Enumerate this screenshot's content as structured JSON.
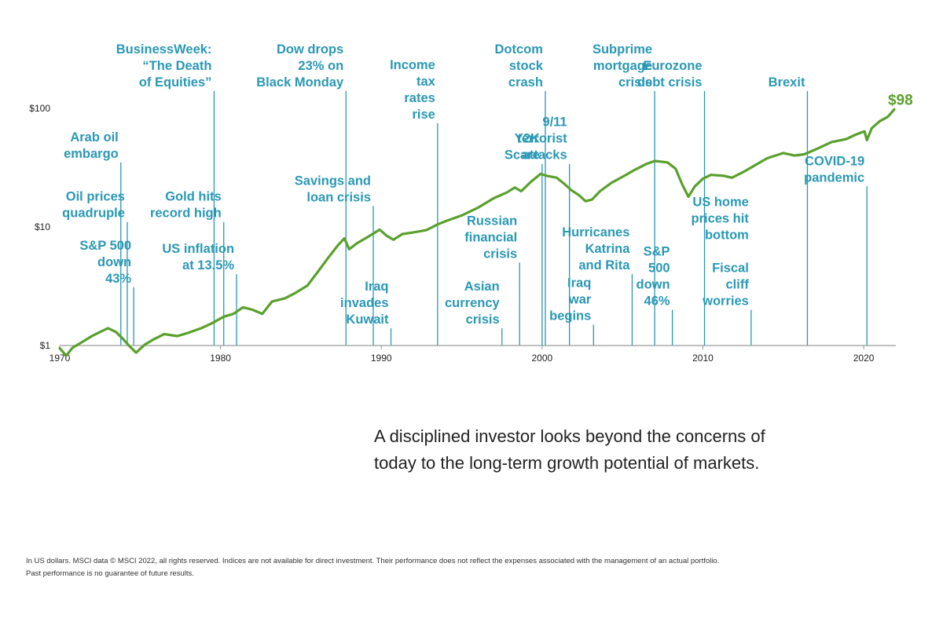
{
  "chart_data": {
    "type": "line",
    "title": "",
    "xlabel": "",
    "ylabel": "",
    "y_scale": "log",
    "xlim": [
      1970,
      2022
    ],
    "ylim": [
      1,
      100
    ],
    "x_ticks": [
      1970,
      1980,
      1990,
      2000,
      2010,
      2020
    ],
    "x_tick_labels": [
      "1970",
      "1980",
      "1990",
      "2000",
      "2010",
      "2020"
    ],
    "y_ticks": [
      1,
      10,
      100
    ],
    "y_tick_labels": [
      "$1",
      "$10",
      "$100"
    ],
    "grid": false,
    "line_color": "#5aa02c",
    "annotation_color": "#2a98b5",
    "series": [
      {
        "x": [
          1970,
          1970.4,
          1970.8,
          1971.3,
          1972,
          1972.5,
          1973,
          1973.5,
          1973.9,
          1974.3,
          1974.75,
          1975.3,
          1975.8,
          1976.5,
          1977.3,
          1978,
          1978.8,
          1979.5,
          1980.2,
          1980.8,
          1981.4,
          1982,
          1982.6,
          1983.2,
          1984,
          1984.6,
          1985.4,
          1986,
          1986.7,
          1987.3,
          1987.7,
          1988,
          1988.5,
          1989.2,
          1989.9,
          1990.3,
          1990.75,
          1991.3,
          1992,
          1992.8,
          1993.5,
          1994,
          1995,
          1996,
          1997,
          1997.8,
          1998.3,
          1998.7,
          1999.3,
          1999.9,
          2000.3,
          2000.9,
          2001.4,
          2001.8,
          2002.3,
          2002.7,
          2003.1,
          2003.6,
          2004.3,
          2005,
          2005.8,
          2006.5,
          2007,
          2007.8,
          2008.3,
          2008.7,
          2009.1,
          2009.5,
          2010,
          2010.5,
          2011.3,
          2011.8,
          2012.5,
          2013.3,
          2014,
          2015,
          2015.7,
          2016.3,
          2017,
          2018,
          2018.9,
          2019.5,
          2020.05,
          2020.2,
          2020.5,
          2021,
          2021.5,
          2021.9
        ],
        "values": [
          0.95,
          0.82,
          0.96,
          1.05,
          1.2,
          1.3,
          1.4,
          1.3,
          1.15,
          1.0,
          0.87,
          1.02,
          1.12,
          1.25,
          1.2,
          1.28,
          1.4,
          1.55,
          1.75,
          1.85,
          2.1,
          2.0,
          1.85,
          2.35,
          2.5,
          2.75,
          3.2,
          4.1,
          5.5,
          7.0,
          8.0,
          6.5,
          7.3,
          8.3,
          9.5,
          8.5,
          7.8,
          8.7,
          9.0,
          9.4,
          10.5,
          11.2,
          12.5,
          14.5,
          17.5,
          19.5,
          21.5,
          20.0,
          24.0,
          28.0,
          27.0,
          26.0,
          23.0,
          20.5,
          18.5,
          16.5,
          17.0,
          20.0,
          23.5,
          26.5,
          30.5,
          34.0,
          36.0,
          35.0,
          31.0,
          23.0,
          18.0,
          22.0,
          25.5,
          27.5,
          27.0,
          26.0,
          29.0,
          33.5,
          38.0,
          42.0,
          40.0,
          41.0,
          45.0,
          52.0,
          55.0,
          60.0,
          64.0,
          54.0,
          68.0,
          78.0,
          85.0,
          98.0
        ]
      }
    ],
    "end_label": "$98",
    "annotations": [
      {
        "year": 1973.8,
        "top_value": 35,
        "lines": [
          "Arab oil",
          "embargo"
        ]
      },
      {
        "year": 1974.2,
        "top_value": 11,
        "lines": [
          "Oil prices",
          "quadruple"
        ]
      },
      {
        "year": 1974.6,
        "top_value": 3.1,
        "lines": [
          "S&P 500",
          "down",
          "43%"
        ]
      },
      {
        "year": 1979.6,
        "top_value": 140,
        "lines": [
          "BusinessWeek:",
          "“The Death",
          "of Equities”"
        ]
      },
      {
        "year": 1980.2,
        "top_value": 11,
        "lines": [
          "Gold hits",
          "record high"
        ]
      },
      {
        "year": 1981,
        "top_value": 4,
        "lines": [
          "US inflation",
          "at 13.5%"
        ]
      },
      {
        "year": 1987.8,
        "top_value": 140,
        "lines": [
          "Dow drops",
          "23% on",
          "Black Monday"
        ]
      },
      {
        "year": 1989.5,
        "top_value": 15,
        "lines": [
          "Savings and",
          "loan crisis"
        ]
      },
      {
        "year": 1990.6,
        "top_value": 1.4,
        "lines": [
          "Iraq",
          "invades",
          "Kuwait"
        ]
      },
      {
        "year": 1993.5,
        "top_value": 75,
        "lines": [
          "Income",
          "tax",
          "rates",
          "rise"
        ]
      },
      {
        "year": 1997.5,
        "top_value": 1.4,
        "lines": [
          "Asian",
          "currency",
          "crisis"
        ]
      },
      {
        "year": 1998.6,
        "top_value": 5,
        "lines": [
          "Russian",
          "financial",
          "crisis"
        ]
      },
      {
        "year": 2000,
        "top_value": 34,
        "lines": [
          "Y2K",
          "Scare"
        ]
      },
      {
        "year": 2000.2,
        "top_value": 140,
        "lines": [
          "Dotcom",
          "stock",
          "crash"
        ]
      },
      {
        "year": 2001.7,
        "top_value": 34,
        "lines": [
          "9/11",
          "terrorist",
          "attacks"
        ]
      },
      {
        "year": 2003.2,
        "top_value": 1.5,
        "lines": [
          "Iraq",
          "war",
          "begins"
        ]
      },
      {
        "year": 2005.6,
        "top_value": 4,
        "lines": [
          "Hurricanes",
          "Katrina",
          "and Rita"
        ]
      },
      {
        "year": 2007,
        "top_value": 140,
        "lines": [
          "Subprime",
          "mortgage",
          "crisis"
        ]
      },
      {
        "year": 2008.1,
        "top_value": 2,
        "lines": [
          "S&P",
          "500",
          "down",
          "46%"
        ]
      },
      {
        "year": 2010.1,
        "top_value": 140,
        "lines": [
          "Eurozone",
          "debt crisis"
        ]
      },
      {
        "year": 2013,
        "top_value": 2,
        "lines": [
          "US home",
          "prices hit",
          "bottom",
          "",
          "Fiscal",
          "cliff",
          "worries"
        ]
      },
      {
        "year": 2016.5,
        "top_value": 140,
        "lines": [
          "Brexit"
        ]
      },
      {
        "year": 2020.2,
        "top_value": 22,
        "lines": [
          "COVID-19",
          "pandemic"
        ]
      }
    ]
  },
  "message": "A disciplined investor looks beyond the concerns of today to the long-term growth potential of markets.",
  "footnote": {
    "line1": "In US dollars. MSCI data © MSCI 2022, all rights reserved. Indices are not available for direct investment. Their performance does not reflect the expenses associated with the management of an actual portfolio.",
    "line2": "Past performance is no guarantee of future results."
  }
}
